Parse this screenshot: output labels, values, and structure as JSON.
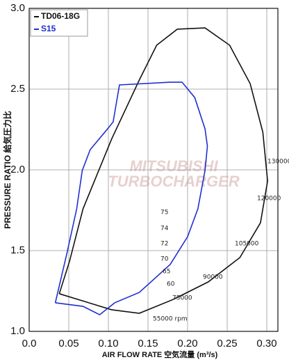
{
  "chart_data": {
    "type": "line",
    "x_label": "AIR FLOW RATE 空気流量 (m³/s)",
    "y_label": "PRESSURE RATIO 給気圧力比",
    "xlim": [
      0,
      0.314
    ],
    "ylim": [
      1.0,
      3.0
    ],
    "xticks": [
      {
        "value": 0,
        "label": "0.0"
      },
      0.05,
      {
        "value": 0.1,
        "label": "0.10"
      },
      0.15,
      {
        "value": 0.2,
        "label": "0.20"
      },
      0.25,
      {
        "value": 0.3,
        "label": "0.30"
      }
    ],
    "yticks": [
      {
        "value": 1,
        "label": "1.0"
      },
      1.5,
      {
        "value": 2,
        "label": "2.0"
      },
      2.5,
      {
        "value": 3,
        "label": "3.0"
      }
    ],
    "grid": true,
    "legend": "top-left",
    "series": [
      {
        "name": "TD06-18G",
        "color": "#111111",
        "x": [
          0.038,
          0.051,
          0.068,
          0.104,
          0.139,
          0.161,
          0.187,
          0.222,
          0.253,
          0.279,
          0.295,
          0.301,
          0.292,
          0.266,
          0.226,
          0.182,
          0.139,
          0.104,
          0.038
        ],
        "values": [
          1.233,
          1.435,
          1.759,
          2.19,
          2.556,
          2.772,
          2.871,
          2.879,
          2.772,
          2.534,
          2.233,
          1.931,
          1.672,
          1.457,
          1.306,
          1.198,
          1.112,
          1.134,
          1.233
        ]
      },
      {
        "name": "S15",
        "color": "#1f2fd0",
        "x": [
          0.033,
          0.048,
          0.06,
          0.067,
          0.077,
          0.099,
          0.106,
          0.114,
          0.178,
          0.193,
          0.209,
          0.222,
          0.225,
          0.222,
          0.213,
          0.2,
          0.178,
          0.139,
          0.108,
          0.089,
          0.068,
          0.033
        ],
        "values": [
          1.177,
          1.491,
          1.759,
          1.996,
          2.125,
          2.254,
          2.297,
          2.526,
          2.543,
          2.543,
          2.448,
          2.254,
          2.147,
          1.996,
          1.759,
          1.586,
          1.414,
          1.241,
          1.177,
          1.103,
          1.155,
          1.177
        ]
      }
    ],
    "speed_labels": [
      "55000 rpm",
      "75000",
      "90000",
      "105000",
      "120000",
      "130000"
    ],
    "efficiency_labels": [
      "75",
      "74",
      "72",
      "70",
      "65",
      "60"
    ],
    "watermark": [
      "MITSUBISHI",
      "TURBOCHARGER"
    ]
  }
}
